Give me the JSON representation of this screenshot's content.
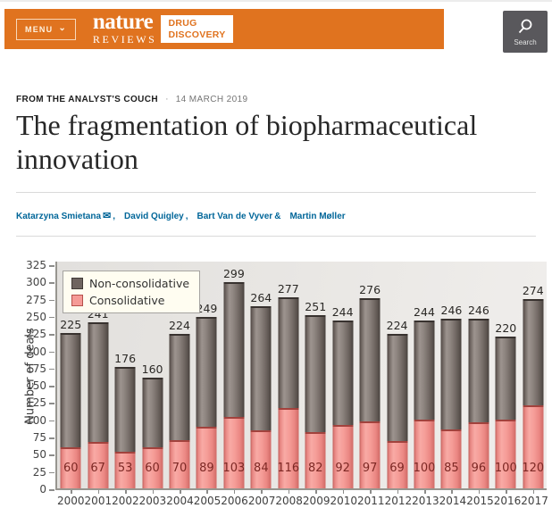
{
  "header": {
    "menu_label": "MENU",
    "brand_nature": "nature",
    "brand_reviews": "REVIEWS",
    "journal_line1": "DRUG",
    "journal_line2": "DISCOVERY",
    "search_label": "Search",
    "colors": {
      "orange": "#e0731f",
      "search_bg": "#59585c"
    }
  },
  "article": {
    "kicker": "FROM THE ANALYST'S COUCH",
    "separator": "·",
    "date": "14 MARCH 2019",
    "title": "The fragmentation of biopharmaceutical innovation",
    "link_color": "#006699",
    "authors": [
      {
        "name": "Katarzyna Smietana",
        "email_icon": "envelope-icon",
        "suffix": ","
      },
      {
        "name": "David Quigley",
        "suffix": ","
      },
      {
        "name": "Bart Van de Vyver",
        "suffix": " &"
      },
      {
        "name": "Martin Møller",
        "suffix": ""
      }
    ]
  },
  "chart_data": {
    "type": "bar",
    "stacked": true,
    "title": "",
    "xlabel": "",
    "ylabel": "Number of deals",
    "ylim": [
      0,
      325
    ],
    "ytick_step": 25,
    "grid": false,
    "legend_position": "top-left",
    "categories": [
      "2000",
      "2001",
      "2002",
      "2003",
      "2004",
      "2005",
      "2006",
      "2007",
      "2008",
      "2009",
      "2010",
      "2011",
      "2012",
      "2013",
      "2014",
      "2015",
      "2016",
      "2017"
    ],
    "series": [
      {
        "name": "Non-consolidative",
        "color": "#756a66",
        "values": [
          165,
          174,
          123,
          100,
          154,
          160,
          196,
          180,
          161,
          169,
          152,
          179,
          155,
          144,
          161,
          150,
          120,
          154
        ]
      },
      {
        "name": "Consolidative",
        "color": "#f59a96",
        "values": [
          60,
          67,
          53,
          60,
          70,
          89,
          103,
          84,
          116,
          82,
          92,
          97,
          69,
          100,
          85,
          96,
          100,
          120
        ]
      }
    ],
    "totals": [
      225,
      241,
      176,
      160,
      224,
      249,
      299,
      264,
      277,
      251,
      244,
      276,
      224,
      244,
      246,
      246,
      220,
      274
    ],
    "total_label_color": "#2b2926",
    "consolidative_label_color": "#7d2824"
  }
}
